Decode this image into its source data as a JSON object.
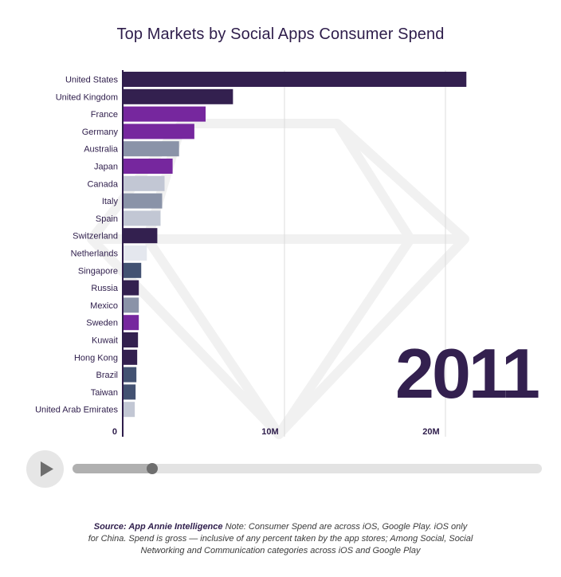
{
  "title": "Top Markets by Social Apps Consumer Spend",
  "year_label": "2011",
  "player": {
    "play_icon": "play-icon",
    "progress": 0.17
  },
  "footnote": {
    "source": "Source: App Annie Intelligence",
    "note": " Note: Consumer Spend are across iOS, Google Play. iOS only for China. Spend is gross — inclusive of any percent taken by the app stores; Among Social, Social Networking and Communication categories across iOS and Google Play"
  },
  "colors": {
    "dark_purple": "#33204f",
    "purple": "#76279e",
    "slate": "#8a93a8",
    "light_slate": "#c2c7d4",
    "pale": "#e4e7ee",
    "navy": "#435272"
  },
  "chart_data": {
    "type": "bar",
    "orientation": "horizontal",
    "categories": [
      "United States",
      "United Kingdom",
      "France",
      "Germany",
      "Australia",
      "Japan",
      "Canada",
      "Italy",
      "Spain",
      "Switzerland",
      "Netherlands",
      "Singapore",
      "Russia",
      "Mexico",
      "Sweden",
      "Kuwait",
      "Hong Kong",
      "Brazil",
      "Taiwan",
      "United Arab Emirates"
    ],
    "values": [
      21300000,
      6800000,
      5100000,
      4400000,
      3450000,
      3050000,
      2550000,
      2400000,
      2300000,
      2100000,
      1450000,
      1100000,
      950000,
      950000,
      950000,
      900000,
      850000,
      800000,
      750000,
      700000
    ],
    "bar_colors": [
      "#33204f",
      "#33204f",
      "#76279e",
      "#76279e",
      "#8a93a8",
      "#76279e",
      "#c2c7d4",
      "#8a93a8",
      "#c2c7d4",
      "#33204f",
      "#e4e7ee",
      "#435272",
      "#33204f",
      "#8a93a8",
      "#76279e",
      "#33204f",
      "#33204f",
      "#435272",
      "#435272",
      "#c2c7d4"
    ],
    "x_ticks": [
      {
        "value": 0,
        "label": "0"
      },
      {
        "value": 10000000,
        "label": "10M"
      },
      {
        "value": 20000000,
        "label": "20M"
      }
    ],
    "xlim": [
      0,
      26000000
    ],
    "grid": true,
    "title": "Top Markets by Social Apps Consumer Spend"
  }
}
